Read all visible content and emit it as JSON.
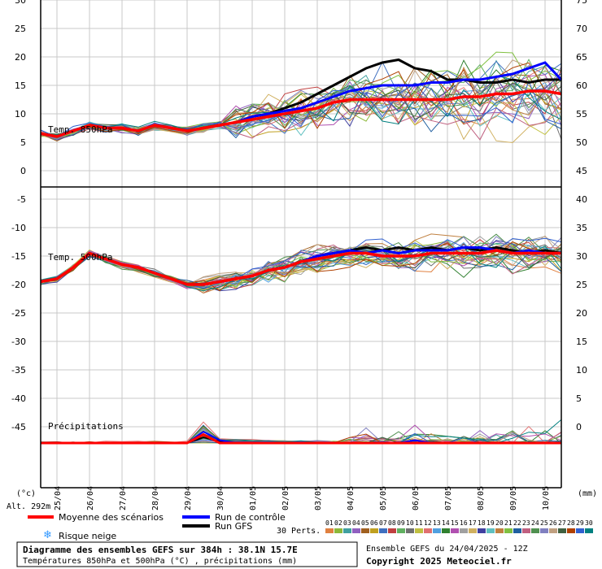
{
  "chart_data": {
    "type": "line",
    "title": "Diagramme des ensembles GEFS sur 384h : 38.1N 15.7E",
    "subtitle": "Températures 850hPa et 500hPa (°C) , précipitations (mm)",
    "run_info": "Ensemble GEFS du 24/04/2025 - 12Z",
    "copyright": "Copyright 2025 Meteociel.fr",
    "altitude": "Alt. 292m",
    "left_unit": "(°c)",
    "right_unit": "(mm)",
    "x_ticks": [
      "25/04",
      "26/04",
      "27/04",
      "28/04",
      "29/04",
      "30/04",
      "01/05",
      "02/05",
      "03/05",
      "04/05",
      "05/05",
      "06/05",
      "07/05",
      "08/05",
      "09/05",
      "10/05"
    ],
    "left_ticks": [
      "30",
      "25",
      "20",
      "15",
      "10",
      "5",
      "0",
      "-5",
      "-10",
      "-15",
      "-20",
      "-25",
      "-30",
      "-35",
      "-40",
      "-45"
    ],
    "right_ticks": [
      "75",
      "70",
      "65",
      "60",
      "55",
      "50",
      "45",
      "40",
      "35",
      "30",
      "25",
      "20",
      "15",
      "10",
      "5",
      "0"
    ],
    "panels": [
      "Temp. 850hPa",
      "Temp. 500hPa",
      "Précipitations"
    ],
    "legend": {
      "mean": "Moyenne des scénarios",
      "control": "Run de contrôle",
      "gfs": "Run GFS",
      "snow": "Risque neige",
      "perts_label": "30 Perts.",
      "pert_numbers": [
        "01",
        "02",
        "03",
        "04",
        "05",
        "06",
        "07",
        "08",
        "09",
        "10",
        "11",
        "12",
        "13",
        "14",
        "15",
        "16",
        "17",
        "18",
        "19",
        "20",
        "21",
        "22",
        "23",
        "24",
        "25",
        "26",
        "27",
        "28",
        "29",
        "30"
      ],
      "pert_colors": [
        "#e08040",
        "#8cb838",
        "#40a0a0",
        "#9060c0",
        "#a06020",
        "#c0a020",
        "#4070c0",
        "#c04040",
        "#60b060",
        "#707070",
        "#c0c040",
        "#e07070",
        "#50a0e0",
        "#308030",
        "#b050b0",
        "#a0a0a0",
        "#d0b060",
        "#4040a0",
        "#60c0c0",
        "#c08040",
        "#80c040",
        "#2060a0",
        "#c06080",
        "#509050",
        "#8080c0",
        "#c0a080",
        "#406040",
        "#b04000",
        "#3060d0",
        "#008080"
      ],
      "mean_color": "#ff0000",
      "control_color": "#0000ff",
      "gfs_color": "#000000"
    },
    "x": [
      "24/04 18Z",
      "25/04 00Z",
      "25/04 12Z",
      "26/04 00Z",
      "26/04 12Z",
      "27/04 00Z",
      "27/04 12Z",
      "28/04 00Z",
      "28/04 12Z",
      "29/04 00Z",
      "29/04 12Z",
      "30/04 00Z",
      "30/04 12Z",
      "01/05 00Z",
      "01/05 12Z",
      "02/05 00Z",
      "02/05 12Z",
      "03/05 00Z",
      "03/05 12Z",
      "04/05 00Z",
      "04/05 12Z",
      "05/05 00Z",
      "05/05 12Z",
      "06/05 00Z",
      "06/05 12Z",
      "07/05 00Z",
      "07/05 12Z",
      "08/05 00Z",
      "08/05 12Z",
      "09/05 00Z",
      "09/05 12Z",
      "10/05 00Z",
      "10/05 12Z"
    ],
    "t850": {
      "mean": [
        6.5,
        6,
        7,
        8,
        7.5,
        7.5,
        7,
        8,
        7.5,
        7,
        7.5,
        8,
        8.5,
        9,
        9.5,
        10,
        10.5,
        11,
        12,
        12.5,
        12.5,
        12.5,
        12.5,
        12.5,
        12.5,
        12.5,
        13,
        13,
        13.5,
        13.5,
        14,
        14,
        13.5
      ],
      "control": [
        6.5,
        6,
        7,
        8,
        7.5,
        7.5,
        7,
        8,
        7.5,
        7,
        7.5,
        8,
        8.5,
        9.5,
        10,
        10.5,
        11,
        12,
        13,
        14,
        14.5,
        15,
        15,
        15,
        15.5,
        15.5,
        16,
        16,
        16.5,
        17,
        18,
        19,
        16
      ],
      "gfs": [
        6.5,
        6,
        7,
        8,
        7.5,
        7.5,
        7,
        8,
        7.5,
        7,
        7.5,
        8,
        8.5,
        9.5,
        10,
        11,
        12,
        13.5,
        15,
        16.5,
        18,
        19,
        19.5,
        18,
        17.5,
        16,
        16,
        15.5,
        15.5,
        16,
        15.5,
        16,
        16
      ]
    },
    "t500": {
      "mean": [
        -19.5,
        -19,
        -17,
        -14.5,
        -15.5,
        -16.5,
        -17,
        -18,
        -19,
        -20,
        -20,
        -19.5,
        -19,
        -18.5,
        -17.5,
        -17,
        -16,
        -15.5,
        -15,
        -14.5,
        -14.5,
        -15,
        -15,
        -15,
        -14.5,
        -14.5,
        -14.5,
        -14.5,
        -14,
        -14.5,
        -14.5,
        -14.5,
        -14.5
      ],
      "control": [
        -19.5,
        -19,
        -17,
        -14.5,
        -15.5,
        -16.5,
        -17,
        -18,
        -19,
        -20,
        -20,
        -19.5,
        -19,
        -18.5,
        -17.5,
        -17,
        -16,
        -15,
        -14.5,
        -14,
        -14.5,
        -14,
        -14.5,
        -14,
        -14,
        -14,
        -13.5,
        -13.5,
        -14,
        -14.5,
        -14,
        -14.5,
        -14.5
      ],
      "gfs": [
        -19.5,
        -19,
        -17,
        -14.5,
        -15.5,
        -16.5,
        -17,
        -18,
        -19,
        -20,
        -20,
        -19.5,
        -19,
        -18.5,
        -17.5,
        -17,
        -16,
        -15,
        -14.5,
        -14,
        -13.5,
        -14,
        -13.5,
        -14,
        -13.5,
        -14,
        -13.5,
        -14,
        -13.5,
        -14,
        -14.5,
        -14,
        -14.5
      ]
    },
    "precip_mm": {
      "mean": [
        0,
        0,
        0,
        0,
        0,
        0,
        0,
        0,
        0,
        0,
        1.5,
        0,
        0,
        0,
        0,
        0,
        0,
        0,
        0,
        0,
        0,
        0,
        0,
        0,
        0,
        0,
        0,
        0,
        0,
        0,
        0,
        0,
        0
      ],
      "control": [
        0,
        0,
        0,
        0,
        0,
        0,
        0,
        0,
        0,
        0,
        2,
        0.5,
        0,
        0,
        0,
        0,
        0,
        0,
        0,
        0,
        0,
        0,
        0,
        0.5,
        0,
        0,
        0,
        0,
        0,
        0,
        0,
        0,
        0
      ],
      "gfs": [
        0,
        0,
        0,
        0,
        0,
        0,
        0,
        0,
        0,
        0,
        1,
        0.3,
        0,
        0,
        0,
        0,
        0,
        0,
        0,
        0,
        0,
        0,
        0,
        0,
        0,
        0,
        0,
        0,
        0,
        0,
        0,
        0,
        0
      ]
    }
  }
}
